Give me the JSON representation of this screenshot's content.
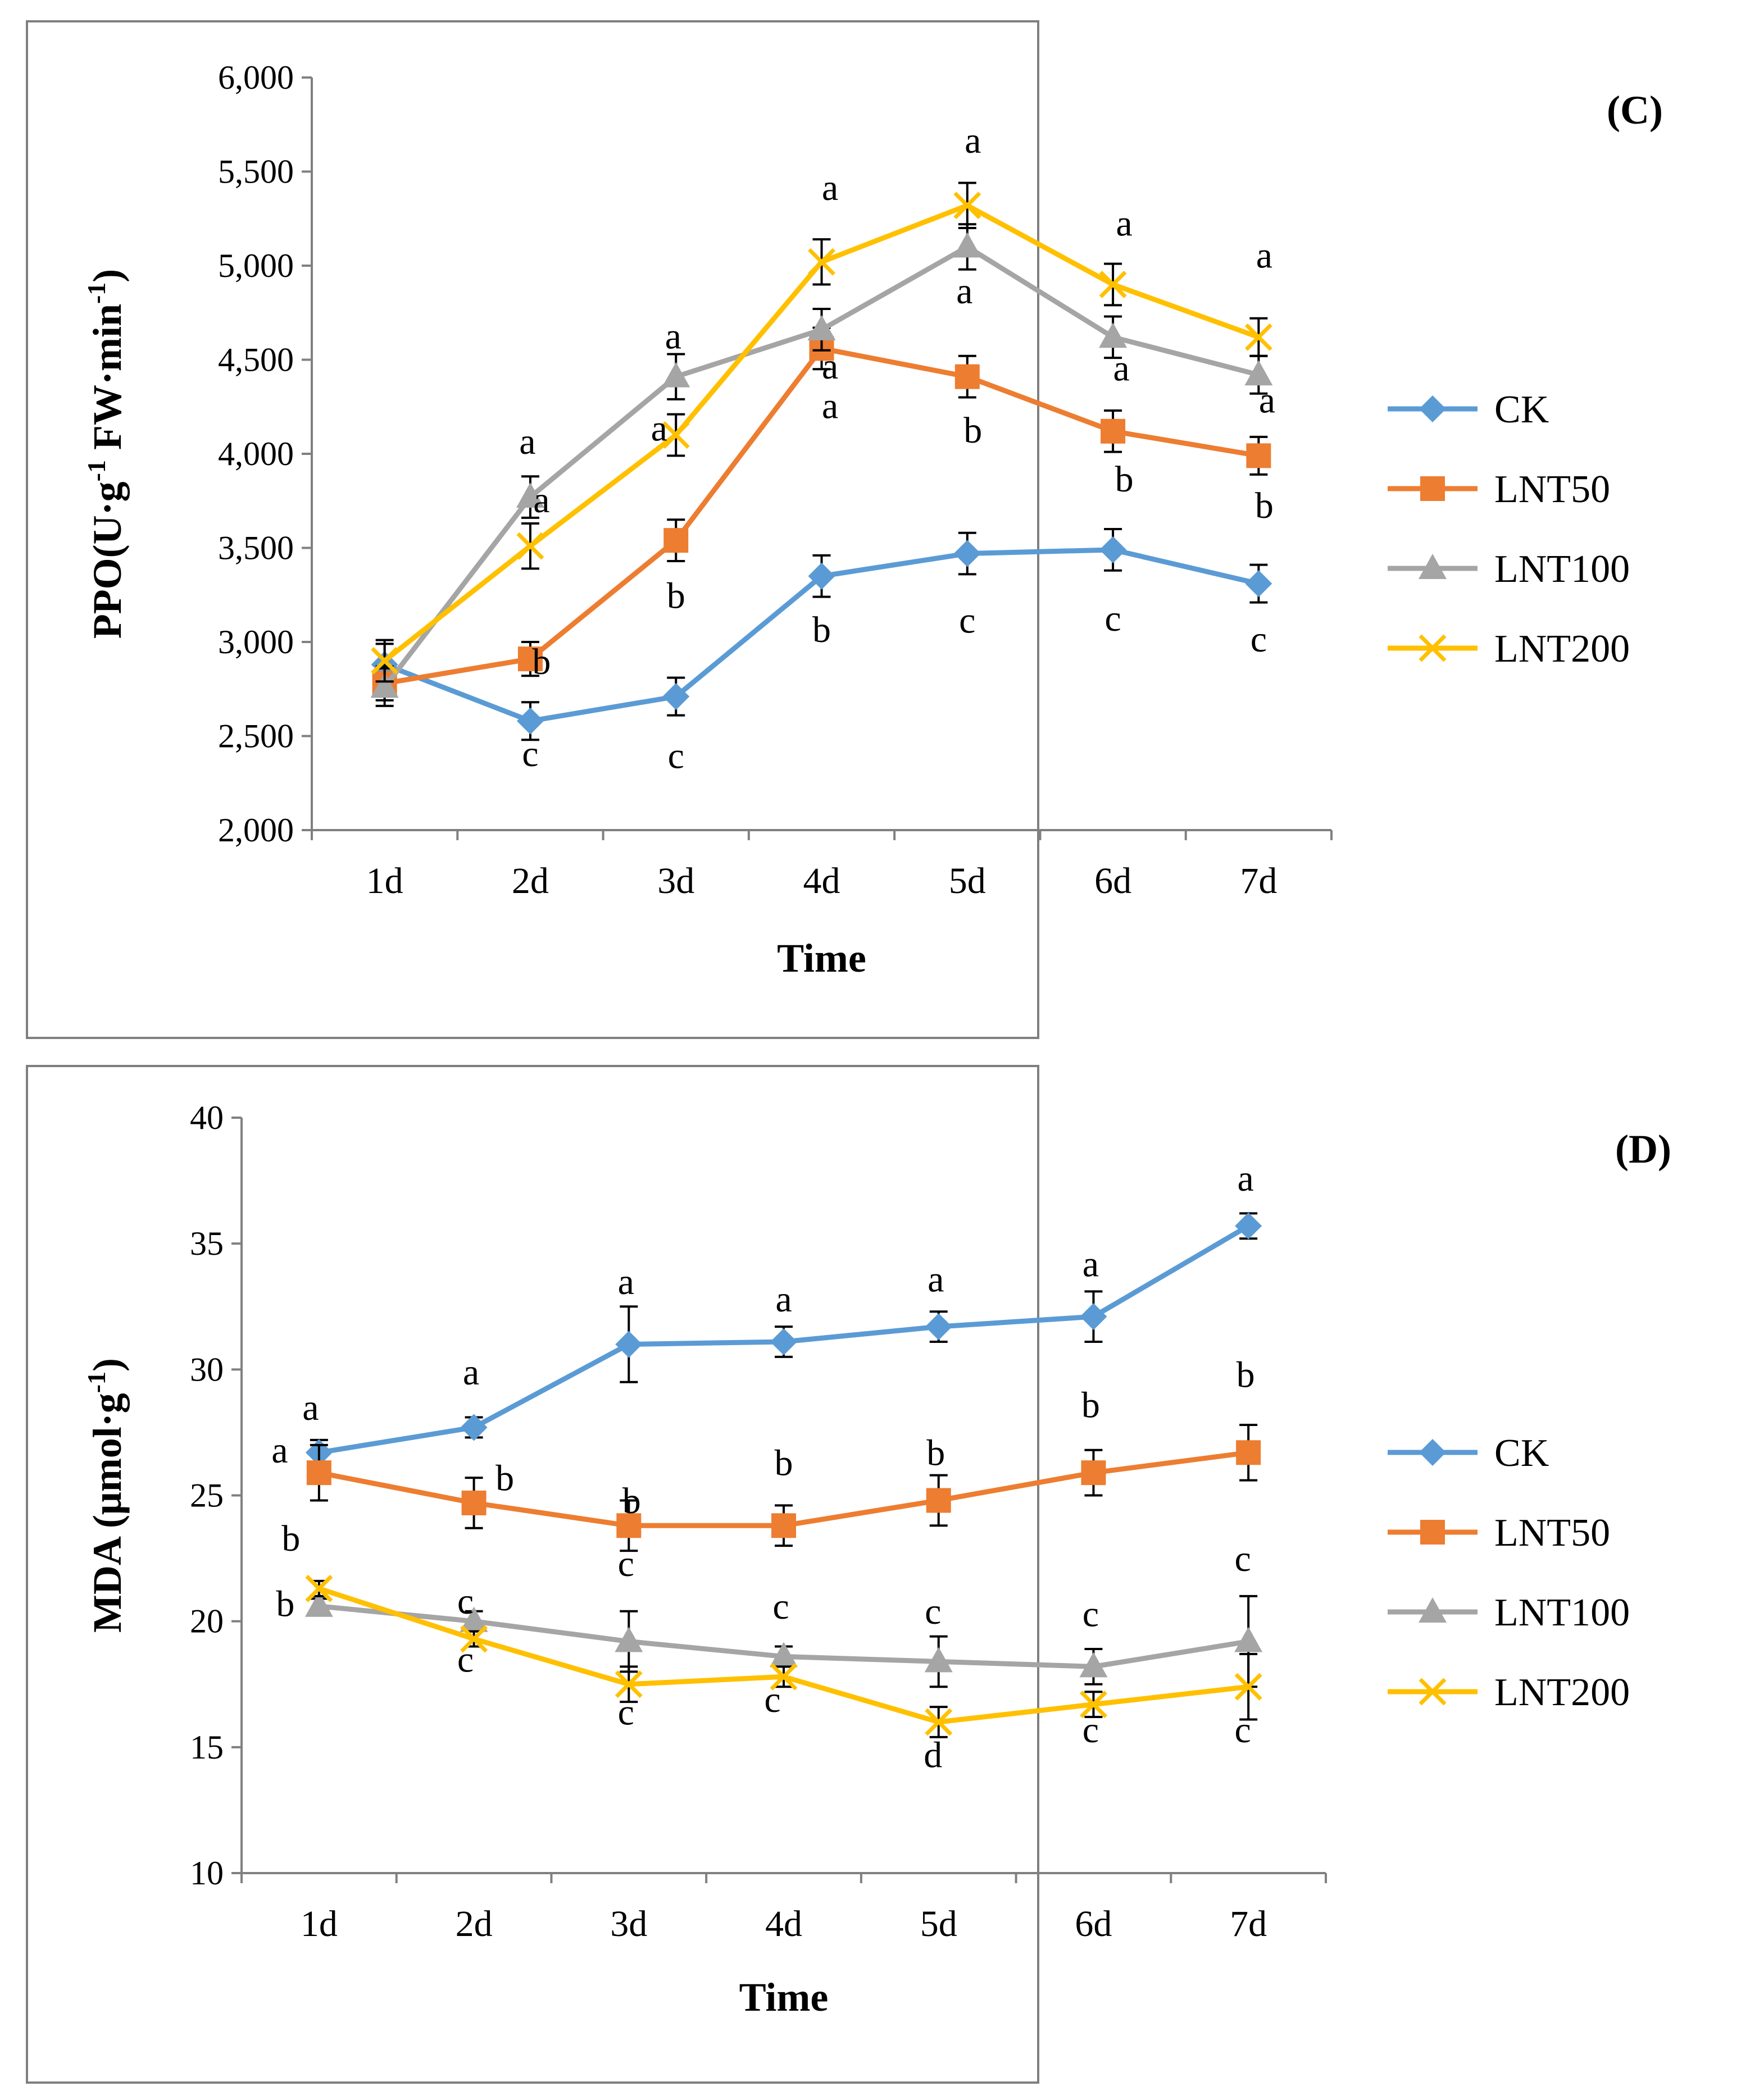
{
  "colors": {
    "CK": "#5B9BD5",
    "LNT50": "#ED7D31",
    "LNT100": "#A5A5A5",
    "LNT200": "#FFC000",
    "frame": "#7F7F7F",
    "axis": "#808080"
  },
  "chart_data": [
    {
      "type": "line",
      "panel": "(C)",
      "ylabel_main": "PPO(U·g",
      "ylabel_sup1": "-1",
      "ylabel_mid": " FW·min",
      "ylabel_sup2": "-1",
      "ylabel_end": ")",
      "xlabel": "Time",
      "categories": [
        "1d",
        "2d",
        "3d",
        "4d",
        "5d",
        "6d",
        "7d"
      ],
      "ylim": [
        2000,
        6000
      ],
      "yticks": [
        2000,
        2500,
        3000,
        3500,
        4000,
        4500,
        5000,
        5500,
        6000
      ],
      "ytick_labels": [
        "2,000",
        "2,500",
        "3,000",
        "3,500",
        "4,000",
        "4,500",
        "5,000",
        "5,500",
        "6,000"
      ],
      "series": [
        {
          "name": "CK",
          "marker": "diamond",
          "values": [
            2880,
            2580,
            2710,
            3350,
            3470,
            3490,
            3310
          ],
          "errors": [
            110,
            100,
            100,
            110,
            110,
            110,
            100
          ],
          "letters": [
            "",
            "c",
            "c",
            "b",
            "c",
            "c",
            "c"
          ],
          "letter_y": [
            0,
            2340,
            2330,
            3000,
            3050,
            3060,
            2950
          ]
        },
        {
          "name": "LNT50",
          "marker": "square",
          "values": [
            2780,
            2910,
            3540,
            4560,
            4410,
            4120,
            3990
          ],
          "errors": [
            90,
            90,
            110,
            110,
            110,
            110,
            100
          ],
          "letters": [
            "",
            "b",
            "b",
            "a",
            "b",
            "b",
            "b"
          ],
          "letter_y": [
            0,
            2830,
            3180,
            4190,
            4060,
            3800,
            3660
          ],
          "letter_dx": [
            0,
            20,
            0,
            15,
            10,
            20,
            10
          ]
        },
        {
          "name": "LNT100",
          "marker": "triangle",
          "values": [
            2760,
            3770,
            4410,
            4660,
            5100,
            4620,
            4420
          ],
          "errors": [
            100,
            110,
            120,
            110,
            120,
            110,
            100
          ],
          "letters": [
            "",
            "a",
            "a",
            "a",
            "a",
            "a",
            "a"
          ],
          "letter_y": [
            0,
            4000,
            4560,
            4400,
            4800,
            4390,
            4220
          ],
          "letter_dx": [
            0,
            -5,
            -5,
            15,
            -5,
            15,
            15
          ]
        },
        {
          "name": "LNT200",
          "marker": "x",
          "values": [
            2900,
            3510,
            4100,
            5020,
            5320,
            4900,
            4620
          ],
          "errors": [
            110,
            120,
            110,
            120,
            120,
            110,
            100
          ],
          "letters": [
            "",
            "a",
            "a",
            "a",
            "a",
            "a",
            "a"
          ],
          "letter_y": [
            0,
            3690,
            4070,
            5350,
            5600,
            5160,
            4990
          ],
          "letter_dx": [
            0,
            20,
            -30,
            15,
            10,
            20,
            10
          ]
        }
      ]
    },
    {
      "type": "line",
      "panel": "(D)",
      "ylabel_main": "MDA (μmol·g",
      "ylabel_sup1": "-1",
      "ylabel_mid": "",
      "ylabel_sup2": "",
      "ylabel_end": ")",
      "xlabel": "Time",
      "categories": [
        "1d",
        "2d",
        "3d",
        "4d",
        "5d",
        "6d",
        "7d"
      ],
      "ylim": [
        10,
        40
      ],
      "yticks": [
        10,
        15,
        20,
        25,
        30,
        35,
        40
      ],
      "ytick_labels": [
        "10",
        "15",
        "20",
        "25",
        "30",
        "35",
        "40"
      ],
      "series": [
        {
          "name": "CK",
          "marker": "diamond",
          "values": [
            26.7,
            27.7,
            31.0,
            31.1,
            31.7,
            32.1,
            35.7
          ],
          "errors": [
            0.5,
            0.4,
            1.5,
            0.6,
            0.6,
            1.0,
            0.5
          ],
          "letters": [
            "a",
            "a",
            "a",
            "a",
            "a",
            "a",
            "a"
          ],
          "letter_y": [
            28.0,
            29.4,
            33.0,
            32.3,
            33.1,
            33.7,
            37.1
          ],
          "letter_dx": [
            -15,
            -5,
            -5,
            0,
            -5,
            -5,
            -5
          ]
        },
        {
          "name": "LNT50",
          "marker": "square",
          "values": [
            25.9,
            24.7,
            23.8,
            23.8,
            24.8,
            25.9,
            26.7
          ],
          "errors": [
            1.1,
            1.0,
            1.0,
            0.8,
            1.0,
            0.9,
            1.1
          ],
          "letters": [
            "a",
            "b",
            "b",
            "b",
            "b",
            "b",
            "b"
          ],
          "letter_y": [
            26.3,
            25.2,
            24.3,
            25.8,
            26.2,
            28.1,
            29.3
          ],
          "letter_dx": [
            -70,
            55,
            5,
            0,
            -5,
            -5,
            -5
          ]
        },
        {
          "name": "LNT100",
          "marker": "triangle",
          "values": [
            20.6,
            20.0,
            19.2,
            18.6,
            18.4,
            18.2,
            19.2
          ],
          "errors": [
            0.3,
            0.4,
            1.2,
            0.4,
            1.0,
            0.7,
            1.8
          ],
          "letters": [
            "b",
            "c",
            "c",
            "c",
            "c",
            "c",
            "c"
          ],
          "letter_y": [
            20.2,
            20.3,
            21.8,
            20.1,
            19.9,
            19.8,
            22.0
          ],
          "letter_dx": [
            -60,
            -15,
            -5,
            -5,
            -10,
            -5,
            -10
          ]
        },
        {
          "name": "LNT200",
          "marker": "x",
          "values": [
            21.3,
            19.3,
            17.5,
            17.8,
            16.0,
            16.7,
            17.4
          ],
          "errors": [
            0.3,
            0.3,
            0.7,
            0.4,
            0.6,
            0.5,
            1.3
          ],
          "letters": [
            "b",
            "c",
            "c",
            "c",
            "d",
            "c",
            "c"
          ],
          "letter_y": [
            22.8,
            18.0,
            15.9,
            16.4,
            14.2,
            15.2,
            15.2
          ],
          "letter_dx": [
            -50,
            -15,
            -5,
            -20,
            -10,
            -5,
            -10
          ]
        }
      ]
    }
  ]
}
